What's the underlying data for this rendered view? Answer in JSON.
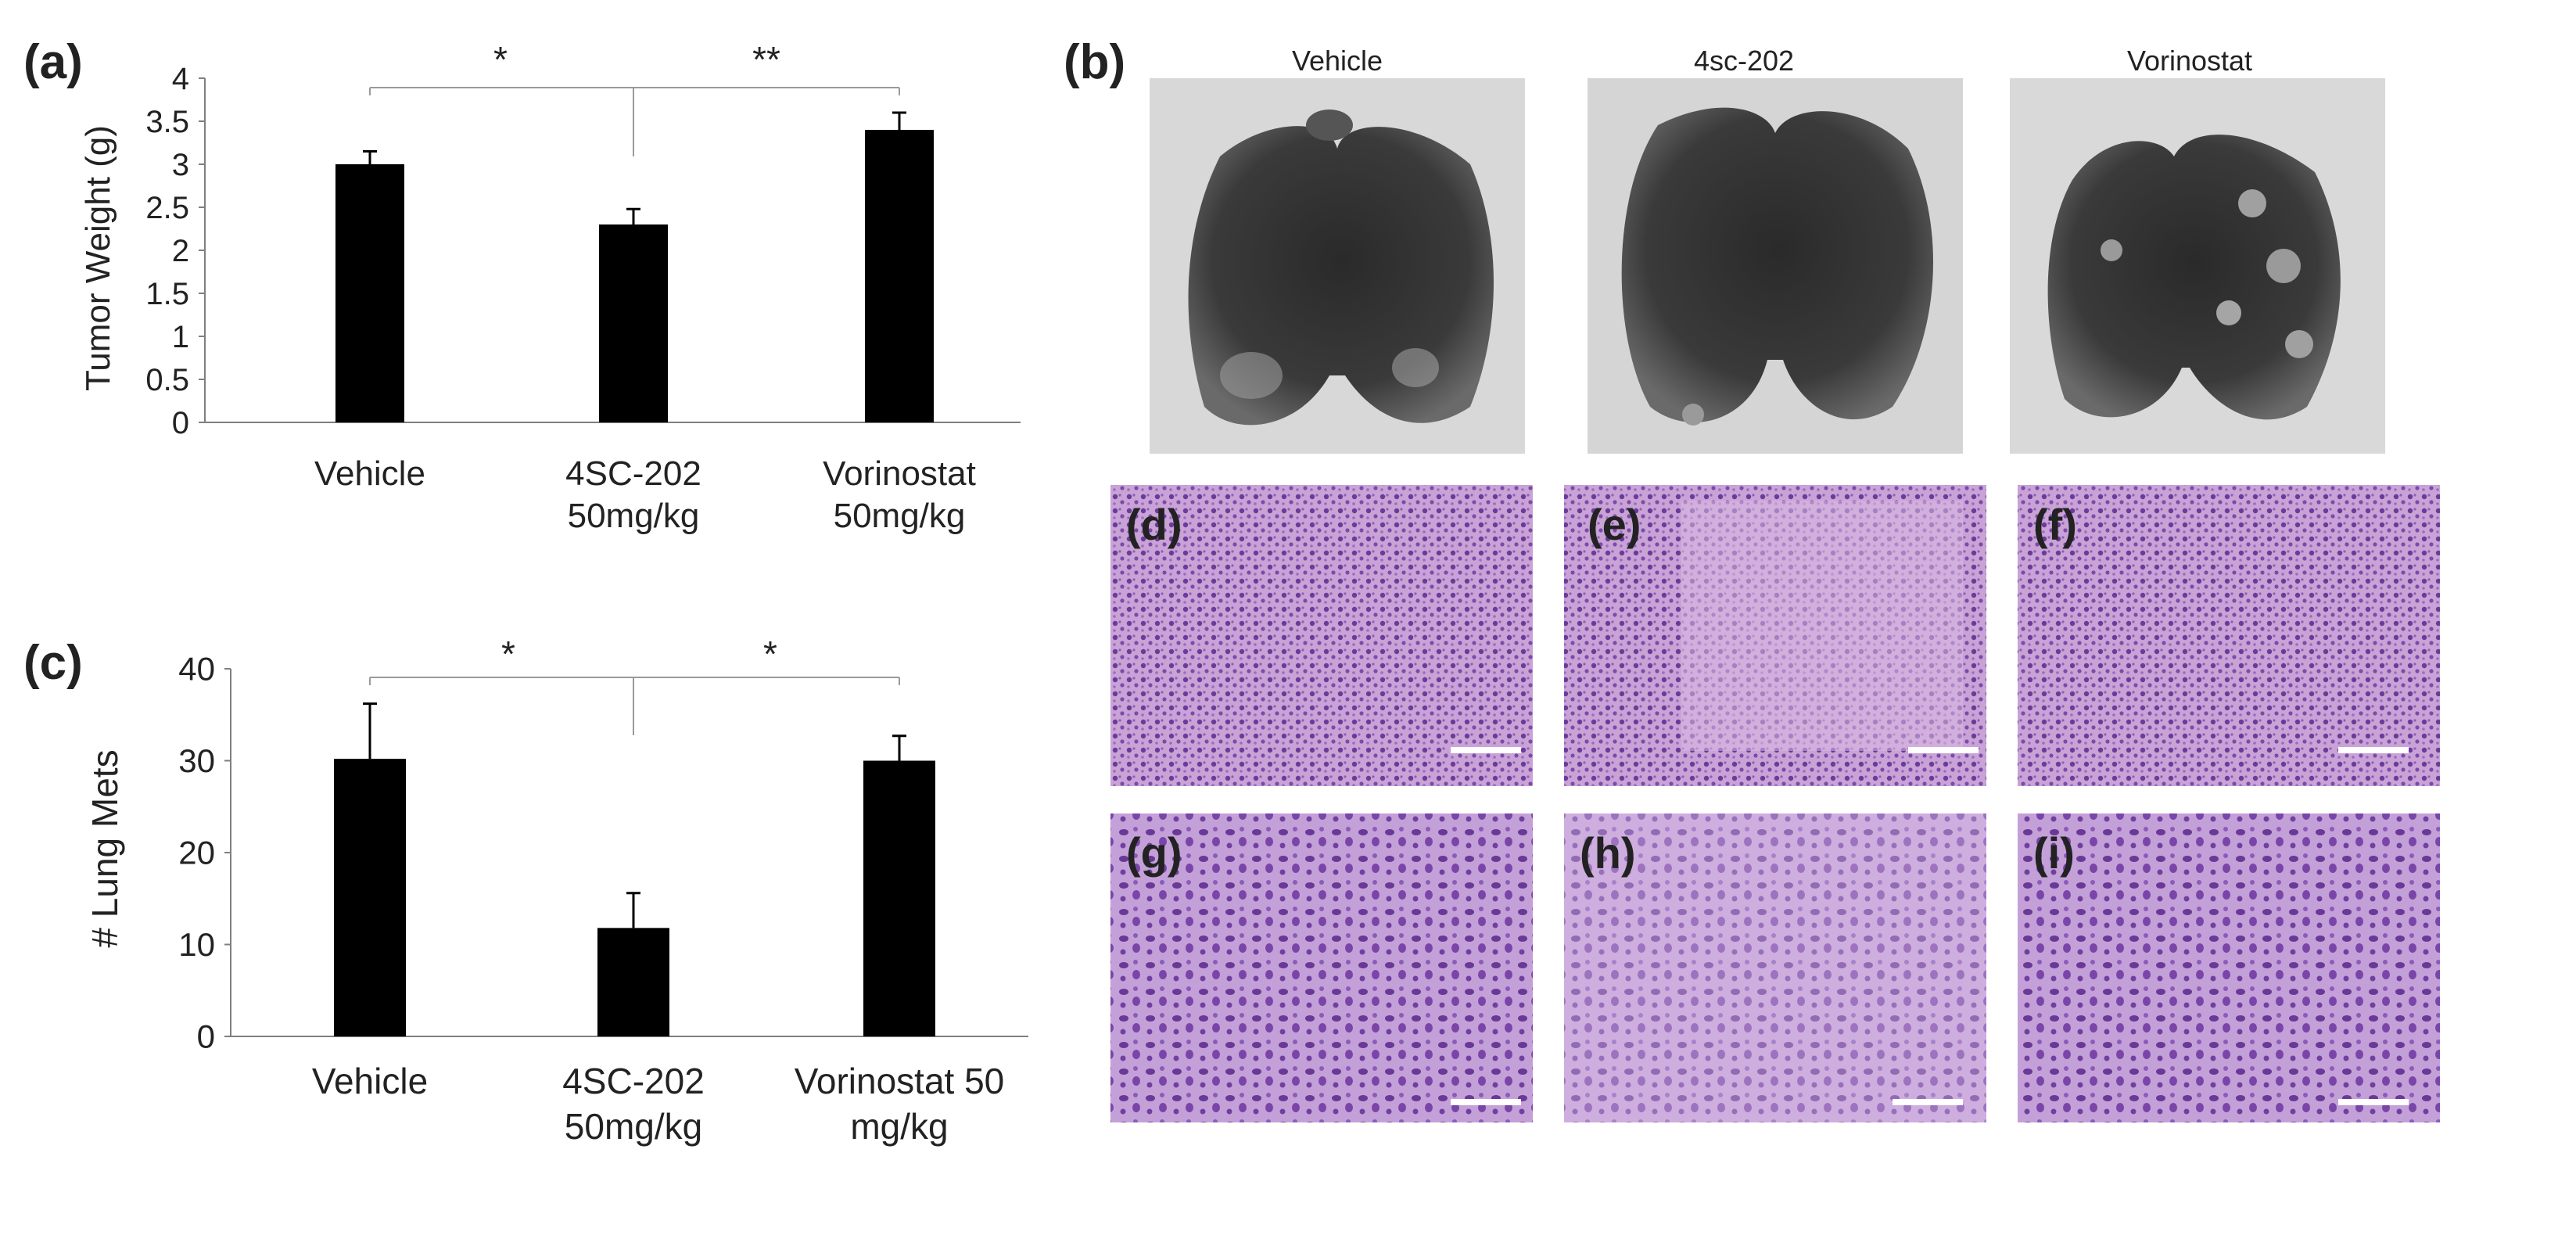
{
  "panel_labels": {
    "a": "(a)",
    "b": "(b)",
    "c": "(c)",
    "d": "(d)",
    "e": "(e)",
    "f": "(f)",
    "g": "(g)",
    "h": "(h)",
    "i": "(i)"
  },
  "photo_titles": [
    "Vehicle",
    "4sc-202",
    "Vorinostat"
  ],
  "colors": {
    "bar": "#000000",
    "axis": "#7f7f7f",
    "bracket": "#9a9a9a",
    "he_stain": "#b07cc6",
    "he_nuclei": "#5a2a8a",
    "lung_bg": "#d9d9d9",
    "scale_bar": "#ffffff"
  },
  "chart_data": [
    {
      "panel": "a",
      "type": "bar",
      "ylabel": "Tumor Weight (g)",
      "categories": [
        [
          "Vehicle"
        ],
        [
          "4SC-202",
          "50mg/kg"
        ],
        [
          "Vorinostat",
          "50mg/kg"
        ]
      ],
      "values": [
        3.0,
        2.3,
        3.4
      ],
      "errors": [
        0.15,
        0.18,
        0.2
      ],
      "ylim": [
        0,
        4
      ],
      "yticks": [
        "0",
        "0.5",
        "1",
        "1.5",
        "2",
        "2.5",
        "3",
        "3.5",
        "4"
      ],
      "significance": [
        "*",
        "**"
      ]
    },
    {
      "panel": "c",
      "type": "bar",
      "ylabel": "# Lung Mets",
      "categories": [
        [
          "Vehicle"
        ],
        [
          "4SC-202",
          "50mg/kg"
        ],
        [
          "Vorinostat 50",
          "mg/kg"
        ]
      ],
      "values": [
        30.2,
        11.8,
        30.0
      ],
      "errors": [
        6.0,
        3.8,
        2.7
      ],
      "ylim": [
        0,
        40
      ],
      "yticks": [
        "0",
        "10",
        "20",
        "30",
        "40"
      ],
      "significance": [
        "*",
        "*"
      ]
    }
  ]
}
